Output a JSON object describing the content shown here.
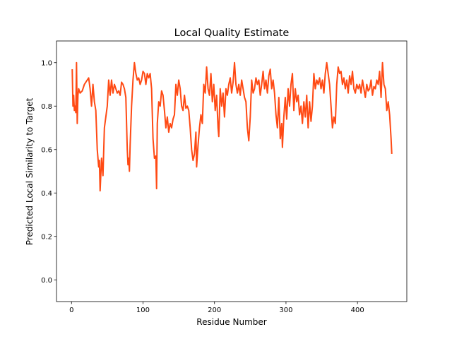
{
  "chart_data": {
    "type": "line",
    "title": "Local Quality Estimate",
    "xlabel": "Residue Number",
    "ylabel": "Predicted Local Similarity to Target",
    "color": "#ff4a14",
    "grid": false,
    "xlim": [
      -21,
      469
    ],
    "ylim": [
      -0.1,
      1.1
    ],
    "xticks": [
      0,
      100,
      200,
      300,
      400
    ],
    "yticks": [
      {
        "value": 0.0,
        "label": "0.0"
      },
      0.2,
      0.4,
      0.6,
      0.8,
      {
        "value": 1.0,
        "label": "1.0"
      }
    ],
    "x": [
      1,
      2,
      3,
      4,
      5,
      6,
      7,
      8,
      9,
      10,
      12,
      15,
      18,
      22,
      24,
      26,
      28,
      30,
      32,
      34,
      36,
      38,
      39,
      40,
      42,
      44,
      46,
      48,
      50,
      52,
      54,
      56,
      58,
      60,
      62,
      64,
      66,
      68,
      70,
      72,
      74,
      76,
      78,
      79,
      80,
      81,
      82,
      84,
      86,
      88,
      90,
      92,
      94,
      96,
      98,
      100,
      102,
      104,
      106,
      108,
      110,
      112,
      114,
      116,
      118,
      119,
      120,
      122,
      124,
      126,
      128,
      130,
      132,
      134,
      136,
      138,
      140,
      142,
      144,
      146,
      148,
      150,
      152,
      154,
      156,
      158,
      160,
      162,
      164,
      166,
      168,
      170,
      172,
      174,
      175,
      177,
      179,
      181,
      183,
      185,
      187,
      189,
      191,
      193,
      195,
      197,
      199,
      201,
      203,
      205,
      206,
      208,
      210,
      212,
      214,
      216,
      218,
      220,
      222,
      224,
      226,
      228,
      230,
      232,
      234,
      236,
      238,
      240,
      242,
      244,
      246,
      248,
      250,
      252,
      254,
      256,
      258,
      260,
      262,
      264,
      266,
      268,
      270,
      272,
      274,
      276,
      278,
      280,
      282,
      284,
      286,
      288,
      290,
      292,
      294,
      295,
      297,
      299,
      301,
      303,
      305,
      307,
      309,
      311,
      313,
      315,
      317,
      319,
      321,
      323,
      325,
      327,
      329,
      331,
      333,
      335,
      337,
      339,
      341,
      343,
      345,
      347,
      349,
      351,
      353,
      355,
      357,
      359,
      361,
      363,
      365,
      367,
      369,
      371,
      373,
      375,
      377,
      379,
      381,
      383,
      385,
      387,
      389,
      391,
      393,
      395,
      397,
      399,
      401,
      403,
      405,
      407,
      409,
      411,
      413,
      415,
      417,
      419,
      421,
      423,
      425,
      427,
      429,
      431,
      433,
      435,
      437,
      439,
      441,
      443,
      445,
      447,
      448
    ],
    "values": [
      0.97,
      0.8,
      0.85,
      0.78,
      0.8,
      0.77,
      1.0,
      0.72,
      0.85,
      0.88,
      0.86,
      0.87,
      0.9,
      0.92,
      0.93,
      0.88,
      0.8,
      0.9,
      0.82,
      0.78,
      0.6,
      0.52,
      0.55,
      0.41,
      0.56,
      0.48,
      0.7,
      0.75,
      0.8,
      0.92,
      0.85,
      0.92,
      0.86,
      0.9,
      0.88,
      0.86,
      0.87,
      0.85,
      0.91,
      0.9,
      0.88,
      0.84,
      0.6,
      0.53,
      0.56,
      0.5,
      0.62,
      0.8,
      0.92,
      1.0,
      0.95,
      0.92,
      0.93,
      0.9,
      0.92,
      0.96,
      0.95,
      0.9,
      0.95,
      0.93,
      0.95,
      0.88,
      0.65,
      0.56,
      0.57,
      0.42,
      0.72,
      0.82,
      0.8,
      0.87,
      0.85,
      0.78,
      0.7,
      0.75,
      0.68,
      0.72,
      0.7,
      0.74,
      0.76,
      0.9,
      0.85,
      0.92,
      0.88,
      0.8,
      0.78,
      0.85,
      0.79,
      0.8,
      0.78,
      0.7,
      0.6,
      0.55,
      0.58,
      0.68,
      0.52,
      0.62,
      0.7,
      0.76,
      0.72,
      0.9,
      0.86,
      0.98,
      0.88,
      0.85,
      0.95,
      0.82,
      0.9,
      0.78,
      0.85,
      0.7,
      0.66,
      0.88,
      0.8,
      0.86,
      0.75,
      0.88,
      0.85,
      0.9,
      0.93,
      0.86,
      0.91,
      1.0,
      0.9,
      0.86,
      0.9,
      0.85,
      0.92,
      0.88,
      0.84,
      0.82,
      0.7,
      0.64,
      0.75,
      0.92,
      0.86,
      0.88,
      0.93,
      0.9,
      0.92,
      0.85,
      0.9,
      0.96,
      0.88,
      0.92,
      0.86,
      0.94,
      0.97,
      0.88,
      0.92,
      0.86,
      0.76,
      0.7,
      0.84,
      0.65,
      0.72,
      0.61,
      0.75,
      0.84,
      0.74,
      0.88,
      0.8,
      0.9,
      0.95,
      0.78,
      0.88,
      0.82,
      0.85,
      0.76,
      0.8,
      0.72,
      0.82,
      0.75,
      0.85,
      0.7,
      0.82,
      0.73,
      0.8,
      0.95,
      0.88,
      0.92,
      0.9,
      0.93,
      0.88,
      0.92,
      0.86,
      0.95,
      1.0,
      0.95,
      0.9,
      0.8,
      0.7,
      0.75,
      0.72,
      0.9,
      0.98,
      0.95,
      0.96,
      0.9,
      0.93,
      0.88,
      0.92,
      0.86,
      0.94,
      0.9,
      0.96,
      0.88,
      0.86,
      0.9,
      0.88,
      0.9,
      0.86,
      0.92,
      0.88,
      0.84,
      0.9,
      0.87,
      0.88,
      0.92,
      0.85,
      0.89,
      0.88,
      0.92,
      0.9,
      0.96,
      0.84,
      1.0,
      0.9,
      0.88,
      0.78,
      0.82,
      0.76,
      0.65,
      0.58
    ]
  }
}
